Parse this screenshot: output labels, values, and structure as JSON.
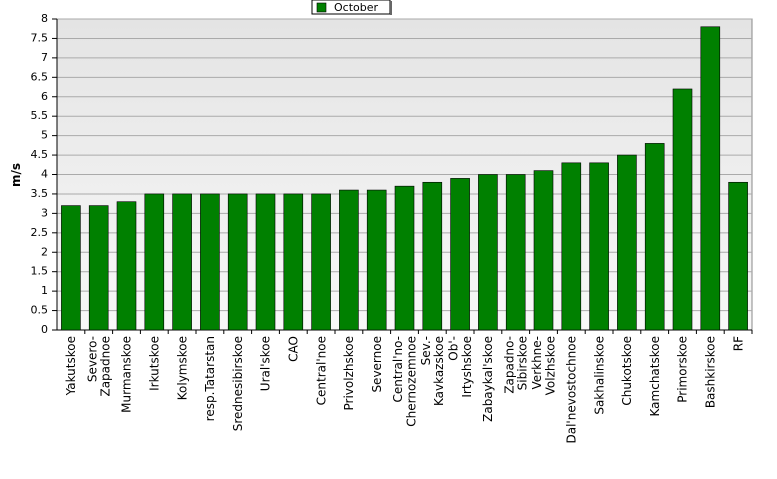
{
  "chart_data": {
    "type": "bar",
    "y_label": "m/s",
    "categories": [
      "Yakutskoe",
      "Severo-Zapadnoe",
      "Murmanskoe",
      "Irkutskoe",
      "Kolymskoe",
      "resp.Tatarstan",
      "Srednesibirskoe",
      "Ural'skoe",
      "CAO",
      "Central'noe",
      "Privolzhskoe",
      "Severnoe",
      "Central'no-Chernozemnoe",
      "Sev.-Kavkazskoe",
      "Ob'-Irtyshskoe",
      "Zabaykal'skoe",
      "Zapadno-Sibirskoe",
      "Verkhne-Volzhskoe",
      "Dal'nevostochnoe",
      "Sakhalinskoe",
      "Chukotskoe",
      "Kamchatskoe",
      "Primorskoe",
      "Bashkirskoe",
      "RF"
    ],
    "series": [
      {
        "name": "October",
        "color": "#008000",
        "values": [
          3.2,
          3.2,
          3.3,
          3.5,
          3.5,
          3.5,
          3.5,
          3.5,
          3.5,
          3.5,
          3.6,
          3.6,
          3.7,
          3.8,
          3.9,
          4.0,
          4.0,
          4.1,
          4.3,
          4.3,
          4.5,
          4.8,
          6.2,
          7.8,
          3.8
        ]
      }
    ],
    "ylim": [
      0,
      8
    ],
    "yticks": [
      0,
      0.5,
      1,
      1.5,
      2,
      2.5,
      3,
      3.5,
      4,
      4.5,
      5,
      5.5,
      6,
      6.5,
      7,
      7.5,
      8
    ],
    "grid": true,
    "legend": "top"
  }
}
